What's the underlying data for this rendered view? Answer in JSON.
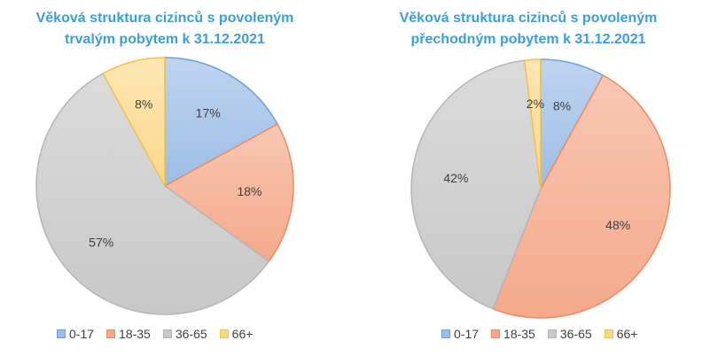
{
  "chart_data": [
    {
      "type": "pie",
      "title_lines": [
        "Věková struktura cizinců s povoleným",
        "trvalým pobytem k 31.12.2021"
      ],
      "categories": [
        "0-17",
        "18-35",
        "36-65",
        "66+"
      ],
      "values": [
        17,
        18,
        57,
        8
      ],
      "labels": [
        "17%",
        "18%",
        "57%",
        "8%"
      ],
      "legend_position": "bottom"
    },
    {
      "type": "pie",
      "title_lines": [
        "Věková struktura cizinců s povoleným",
        "přechodným pobytem k 31.12.2021"
      ],
      "categories": [
        "0-17",
        "18-35",
        "36-65",
        "66+"
      ],
      "values": [
        8,
        48,
        42,
        2
      ],
      "labels": [
        "8%",
        "48%",
        "42%",
        "2%"
      ],
      "legend_position": "bottom"
    }
  ],
  "colors": {
    "0-17": "#9dbde6",
    "18-35": "#f4a98a",
    "36-65": "#c8c8c8",
    "66+": "#fcd98a",
    "title": "#3a9fd6"
  }
}
